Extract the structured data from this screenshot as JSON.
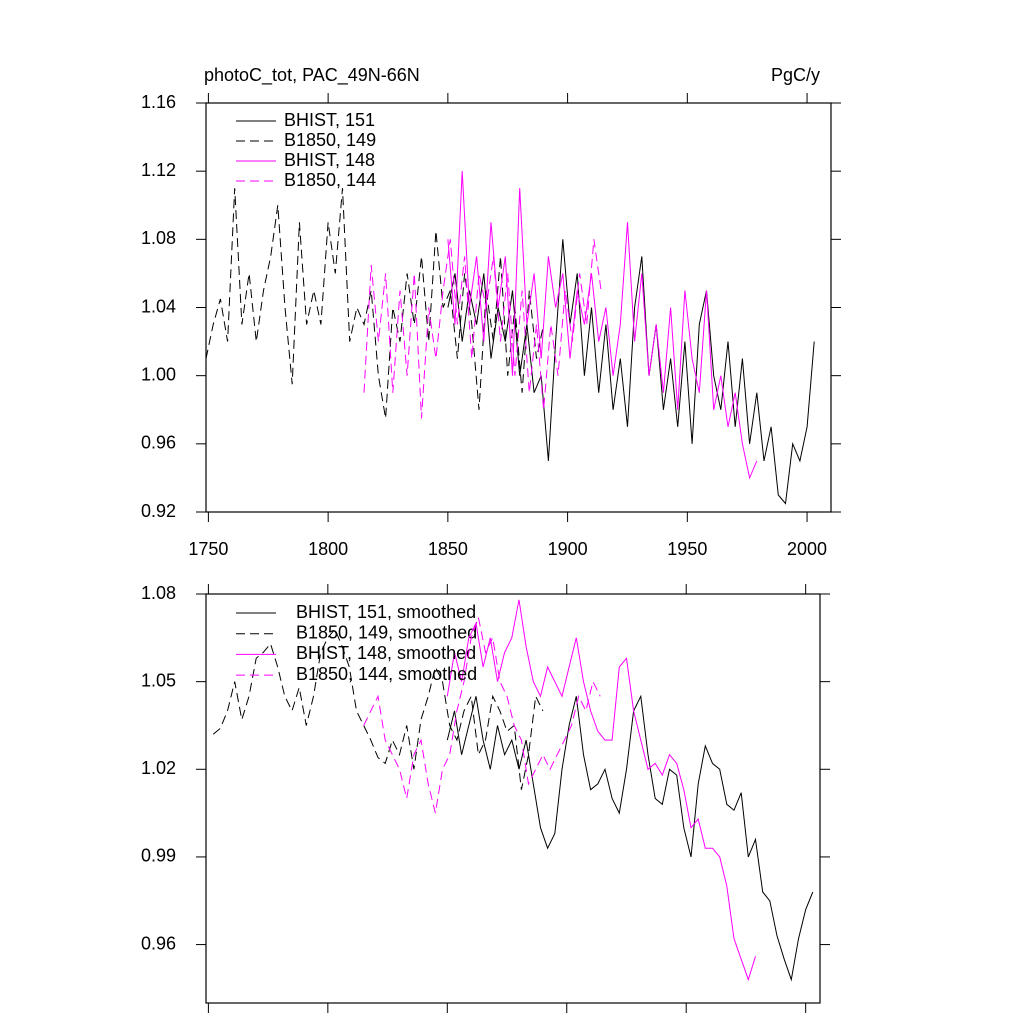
{
  "chart_data": [
    {
      "type": "line",
      "title": "photoC_tot, PAC_49N-66N",
      "units": "PgC/y",
      "xlim": [
        1749,
        2010
      ],
      "ylim": [
        0.92,
        1.16
      ],
      "xticks": [
        1750,
        1800,
        1850,
        1900,
        1950,
        2000
      ],
      "yticks": [
        {
          "value": 0.92,
          "label": "0.92"
        },
        {
          "value": 0.96,
          "label": "0.96"
        },
        {
          "value": 1.0,
          "label": "1.00"
        },
        {
          "value": 1.04,
          "label": "1.04"
        },
        {
          "value": 1.08,
          "label": "1.08"
        },
        {
          "value": 1.12,
          "label": "1.12"
        },
        {
          "value": 1.16,
          "label": "1.16"
        }
      ],
      "x_tick_labels": true,
      "series": [
        {
          "name": "BHIST, 151",
          "color": "#000000",
          "dashed": false,
          "x": [
            1850,
            1853,
            1856,
            1859,
            1862,
            1865,
            1868,
            1871,
            1874,
            1877,
            1880,
            1883,
            1886,
            1889,
            1892,
            1895,
            1898,
            1901,
            1904,
            1907,
            1910,
            1913,
            1916,
            1919,
            1922,
            1925,
            1928,
            1931,
            1934,
            1937,
            1940,
            1943,
            1946,
            1949,
            1952,
            1955,
            1958,
            1961,
            1964,
            1967,
            1970,
            1973,
            1976,
            1979,
            1982,
            1985,
            1988,
            1991,
            1994,
            1997,
            2000,
            2003
          ],
          "values": [
            1.04,
            1.06,
            1.02,
            1.05,
            1.03,
            1.06,
            1.01,
            1.04,
            1.02,
            1.05,
            1.0,
            1.03,
            0.99,
            1.0,
            0.95,
            1.02,
            1.08,
            1.03,
            1.06,
            1.0,
            1.04,
            0.99,
            1.03,
            0.98,
            1.01,
            0.97,
            1.04,
            1.07,
            1.0,
            1.03,
            0.98,
            1.01,
            0.97,
            1.02,
            0.96,
            1.03,
            1.05,
            1.0,
            0.98,
            1.02,
            0.97,
            1.01,
            0.96,
            0.99,
            0.95,
            0.97,
            0.93,
            0.925,
            0.96,
            0.95,
            0.97,
            1.02
          ]
        },
        {
          "name": "B1850, 149",
          "color": "#000000",
          "dashed": true,
          "x": [
            1749,
            1752,
            1755,
            1758,
            1761,
            1764,
            1767,
            1770,
            1773,
            1776,
            1779,
            1782,
            1785,
            1788,
            1791,
            1794,
            1797,
            1800,
            1803,
            1806,
            1809,
            1812,
            1815,
            1818,
            1821,
            1824,
            1827,
            1830,
            1833,
            1836,
            1839,
            1842,
            1845,
            1848,
            1851,
            1854,
            1857,
            1860,
            1863,
            1866,
            1869,
            1872,
            1875,
            1878,
            1881,
            1884,
            1887,
            1890
          ],
          "values": [
            1.01,
            1.03,
            1.045,
            1.02,
            1.11,
            1.03,
            1.06,
            1.02,
            1.05,
            1.07,
            1.1,
            1.04,
            0.995,
            1.09,
            1.03,
            1.05,
            1.03,
            1.09,
            1.06,
            1.11,
            1.02,
            1.04,
            1.03,
            1.05,
            1.0,
            0.975,
            1.04,
            1.02,
            1.06,
            1.03,
            1.07,
            1.02,
            1.085,
            1.04,
            1.05,
            1.01,
            1.06,
            1.03,
            0.98,
            1.05,
            1.02,
            1.07,
            1.0,
            1.04,
            0.99,
            1.05,
            1.01,
            1.03
          ]
        },
        {
          "name": "BHIST, 148",
          "color": "#ff00ff",
          "dashed": false,
          "x": [
            1850,
            1853,
            1856,
            1859,
            1862,
            1865,
            1868,
            1871,
            1874,
            1877,
            1880,
            1883,
            1886,
            1889,
            1892,
            1895,
            1898,
            1901,
            1904,
            1907,
            1910,
            1913,
            1916,
            1919,
            1922,
            1925,
            1928,
            1931,
            1934,
            1937,
            1940,
            1943,
            1946,
            1949,
            1952,
            1955,
            1958,
            1961,
            1964,
            1967,
            1970,
            1973,
            1976,
            1979
          ],
          "values": [
            1.08,
            1.03,
            1.12,
            1.04,
            1.07,
            1.02,
            1.09,
            1.04,
            1.07,
            1.0,
            1.11,
            1.03,
            1.06,
            1.01,
            1.07,
            1.04,
            1.06,
            1.01,
            1.05,
            1.03,
            1.06,
            1.02,
            1.04,
            1.0,
            1.03,
            1.09,
            1.02,
            1.06,
            1.0,
            1.03,
            0.99,
            1.04,
            0.98,
            1.05,
            1.01,
            0.99,
            1.05,
            0.98,
            1.0,
            0.97,
            0.99,
            0.96,
            0.94,
            0.95
          ]
        },
        {
          "name": "B1850, 144",
          "color": "#ff00ff",
          "dashed": true,
          "x": [
            1815,
            1818,
            1821,
            1824,
            1827,
            1830,
            1833,
            1836,
            1839,
            1842,
            1845,
            1848,
            1851,
            1854,
            1857,
            1860,
            1863,
            1866,
            1869,
            1872,
            1875,
            1878,
            1881,
            1884,
            1887,
            1890,
            1893,
            1896,
            1899,
            1902,
            1905,
            1908,
            1911,
            1914
          ],
          "values": [
            0.99,
            1.065,
            1.02,
            1.06,
            0.99,
            1.05,
            1.0,
            1.06,
            0.975,
            1.04,
            1.01,
            1.05,
            1.08,
            1.03,
            1.07,
            1.01,
            1.06,
            1.04,
            1.07,
            1.02,
            1.06,
            1.0,
            1.05,
            0.99,
            1.03,
            0.98,
            1.03,
            1.0,
            1.05,
            1.02,
            1.06,
            1.03,
            1.08,
            1.05
          ]
        }
      ]
    },
    {
      "type": "line",
      "xlim": [
        1749,
        2006
      ],
      "ylim": [
        0.94,
        1.08
      ],
      "xticks": [
        1750,
        1800,
        1850,
        1900,
        1950,
        2000
      ],
      "yticks": [
        0.96,
        0.99,
        1.02,
        1.05,
        1.08
      ],
      "x_tick_labels": false,
      "series": [
        {
          "name": "BHIST, 151, smoothed",
          "color": "#000000",
          "dashed": false,
          "x": [
            1850,
            1853,
            1856,
            1859,
            1862,
            1865,
            1868,
            1871,
            1874,
            1877,
            1880,
            1883,
            1886,
            1889,
            1892,
            1895,
            1898,
            1901,
            1904,
            1907,
            1910,
            1913,
            1916,
            1919,
            1922,
            1925,
            1928,
            1931,
            1934,
            1937,
            1940,
            1943,
            1946,
            1949,
            1952,
            1955,
            1958,
            1961,
            1964,
            1967,
            1970,
            1973,
            1976,
            1979,
            1982,
            1985,
            1988,
            1991,
            1994,
            1997,
            2000,
            2003
          ],
          "values": [
            1.03,
            1.04,
            1.025,
            1.035,
            1.045,
            1.03,
            1.02,
            1.035,
            1.025,
            1.03,
            1.02,
            1.03,
            1.015,
            1.0,
            0.993,
            0.998,
            1.02,
            1.035,
            1.045,
            1.025,
            1.013,
            1.015,
            1.02,
            1.01,
            1.005,
            1.02,
            1.04,
            1.045,
            1.025,
            1.01,
            1.008,
            1.02,
            1.018,
            1.0,
            0.99,
            1.015,
            1.028,
            1.022,
            1.02,
            1.008,
            1.006,
            1.012,
            0.99,
            0.996,
            0.978,
            0.975,
            0.963,
            0.955,
            0.948,
            0.962,
            0.972,
            0.978
          ]
        },
        {
          "name": "B1850, 149, smoothed",
          "color": "#000000",
          "dashed": true,
          "x": [
            1752,
            1755,
            1758,
            1761,
            1764,
            1767,
            1770,
            1773,
            1776,
            1779,
            1782,
            1785,
            1788,
            1791,
            1794,
            1797,
            1800,
            1803,
            1806,
            1809,
            1812,
            1815,
            1818,
            1821,
            1824,
            1827,
            1830,
            1833,
            1836,
            1839,
            1842,
            1845,
            1848,
            1851,
            1854,
            1857,
            1860,
            1863,
            1866,
            1869,
            1872,
            1875,
            1878,
            1881,
            1884,
            1887,
            1890
          ],
          "values": [
            1.032,
            1.034,
            1.04,
            1.05,
            1.037,
            1.045,
            1.058,
            1.06,
            1.063,
            1.055,
            1.045,
            1.04,
            1.048,
            1.035,
            1.045,
            1.06,
            1.065,
            1.068,
            1.062,
            1.055,
            1.04,
            1.035,
            1.03,
            1.024,
            1.022,
            1.03,
            1.025,
            1.035,
            1.02,
            1.037,
            1.045,
            1.055,
            1.05,
            1.035,
            1.03,
            1.04,
            1.045,
            1.025,
            1.03,
            1.045,
            1.04,
            1.033,
            1.035,
            1.013,
            1.025,
            1.045,
            1.04
          ]
        },
        {
          "name": "BHIST, 148, smoothed",
          "color": "#ff00ff",
          "dashed": false,
          "x": [
            1850,
            1853,
            1856,
            1859,
            1862,
            1865,
            1868,
            1871,
            1874,
            1877,
            1880,
            1883,
            1886,
            1889,
            1892,
            1895,
            1898,
            1901,
            1904,
            1907,
            1910,
            1913,
            1916,
            1919,
            1922,
            1925,
            1928,
            1931,
            1934,
            1937,
            1940,
            1943,
            1946,
            1949,
            1952,
            1955,
            1958,
            1961,
            1964,
            1967,
            1970,
            1973,
            1976,
            1979
          ],
          "values": [
            1.045,
            1.06,
            1.05,
            1.065,
            1.07,
            1.055,
            1.065,
            1.05,
            1.06,
            1.065,
            1.078,
            1.062,
            1.05,
            1.045,
            1.055,
            1.05,
            1.045,
            1.055,
            1.065,
            1.05,
            1.04,
            1.033,
            1.03,
            1.03,
            1.055,
            1.058,
            1.04,
            1.03,
            1.02,
            1.022,
            1.018,
            1.025,
            1.022,
            1.013,
            1.0,
            1.003,
            0.993,
            0.993,
            0.99,
            0.98,
            0.962,
            0.955,
            0.948,
            0.956
          ]
        },
        {
          "name": "B1850, 144, smoothed",
          "color": "#ff00ff",
          "dashed": true,
          "x": [
            1815,
            1818,
            1821,
            1824,
            1827,
            1830,
            1833,
            1836,
            1839,
            1842,
            1845,
            1848,
            1851,
            1854,
            1857,
            1860,
            1863,
            1866,
            1869,
            1872,
            1875,
            1878,
            1881,
            1884,
            1887,
            1890,
            1893,
            1896,
            1899,
            1902,
            1905,
            1908,
            1911,
            1914
          ],
          "values": [
            1.035,
            1.04,
            1.045,
            1.03,
            1.025,
            1.02,
            1.01,
            1.025,
            1.03,
            1.015,
            1.005,
            1.02,
            1.025,
            1.04,
            1.05,
            1.065,
            1.072,
            1.06,
            1.065,
            1.05,
            1.045,
            1.035,
            1.03,
            1.015,
            1.02,
            1.025,
            1.02,
            1.025,
            1.03,
            1.035,
            1.045,
            1.04,
            1.05,
            1.045
          ]
        }
      ]
    }
  ]
}
